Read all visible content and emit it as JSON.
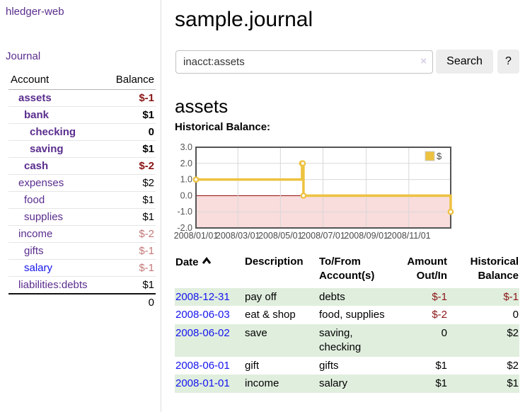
{
  "sidebar": {
    "brand": "hledger-web",
    "journal_link": "Journal",
    "accounts_table": {
      "account_header": "Account",
      "balance_header": "Balance",
      "rows": [
        {
          "name": "assets",
          "indent": 1,
          "bold": true,
          "link_color": "purple",
          "balance": "$-1",
          "neg": "strong"
        },
        {
          "name": "bank",
          "indent": 2,
          "bold": true,
          "link_color": "purple",
          "balance": "$1",
          "neg": "none"
        },
        {
          "name": "checking",
          "indent": 3,
          "bold": true,
          "link_color": "purple",
          "balance": "0",
          "neg": "none"
        },
        {
          "name": "saving",
          "indent": 3,
          "bold": true,
          "link_color": "purple",
          "balance": "$1",
          "neg": "none"
        },
        {
          "name": "cash",
          "indent": 2,
          "bold": true,
          "link_color": "purple",
          "balance": "$-2",
          "neg": "strong"
        },
        {
          "name": "expenses",
          "indent": 1,
          "bold": false,
          "link_color": "purple",
          "balance": "$2",
          "neg": "none"
        },
        {
          "name": "food",
          "indent": 2,
          "bold": false,
          "link_color": "purple",
          "balance": "$1",
          "neg": "none"
        },
        {
          "name": "supplies",
          "indent": 2,
          "bold": false,
          "link_color": "purple",
          "balance": "$1",
          "neg": "none"
        },
        {
          "name": "income",
          "indent": 1,
          "bold": false,
          "link_color": "purple",
          "balance": "$-2",
          "neg": "dim"
        },
        {
          "name": "gifts",
          "indent": 2,
          "bold": false,
          "link_color": "purple",
          "balance": "$-1",
          "neg": "dim"
        },
        {
          "name": "salary",
          "indent": 2,
          "bold": false,
          "link_color": "blue",
          "balance": "$-1",
          "neg": "dim"
        },
        {
          "name": "liabilities:debts",
          "indent": 1,
          "bold": false,
          "link_color": "purple",
          "balance": "$1",
          "neg": "none"
        }
      ],
      "total": "0"
    }
  },
  "header": {
    "title": "sample.journal"
  },
  "search": {
    "query": "inacct:assets",
    "clear_icon": "×",
    "search_label": "Search",
    "help_label": "?"
  },
  "account_page": {
    "heading": "assets",
    "chart_label": "Historical Balance:"
  },
  "chart_data": {
    "type": "line",
    "step": true,
    "title": "Historical Balance",
    "series": [
      {
        "name": "$",
        "color": "#edc240",
        "points": [
          [
            "2008-01-01",
            1
          ],
          [
            "2008-06-01",
            2
          ],
          [
            "2008-06-02",
            2
          ],
          [
            "2008-06-03",
            0
          ],
          [
            "2008-12-31",
            -1
          ]
        ]
      }
    ],
    "xlim": [
      "2008-01-01",
      "2008-12-31"
    ],
    "ylim": [
      -2,
      3
    ],
    "yticks": [
      3.0,
      2.0,
      1.0,
      0.0,
      -1.0,
      -2.0
    ],
    "xticks": [
      "2008/01/01",
      "2008/03/01",
      "2008/05/01",
      "2008/07/01",
      "2008/09/01",
      "2008/11/01"
    ],
    "legend": {
      "label": "$",
      "position": "top-right"
    },
    "grid": true,
    "negative_region_fill": "#f9dcdc",
    "zero_line_color": "#8f0000",
    "gridline_color": "#d8d8d8",
    "border_color": "#545454"
  },
  "register_table": {
    "headers": {
      "date": "Date",
      "description": "Description",
      "tofrom": "To/From Account(s)",
      "amount": "Amount Out/In",
      "balance": "Historical Balance"
    },
    "rows": [
      {
        "date": "2008-12-31",
        "description": "pay off",
        "accounts": "debts",
        "amount": "$-1",
        "amount_negative": true,
        "balance": "$-1",
        "balance_negative": true
      },
      {
        "date": "2008-06-03",
        "description": "eat & shop",
        "accounts": "food, supplies",
        "amount": "$-2",
        "amount_negative": true,
        "balance": "0",
        "balance_negative": false
      },
      {
        "date": "2008-06-02",
        "description": "save",
        "accounts": "saving,\nchecking",
        "amount": "0",
        "amount_negative": false,
        "balance": "$2",
        "balance_negative": false
      },
      {
        "date": "2008-06-01",
        "description": "gift",
        "accounts": "gifts",
        "amount": "$1",
        "amount_negative": false,
        "balance": "$2",
        "balance_negative": false
      },
      {
        "date": "2008-01-01",
        "description": "income",
        "accounts": "salary",
        "amount": "$1",
        "amount_negative": false,
        "balance": "$1",
        "balance_negative": false
      }
    ]
  },
  "colors": {
    "link_purple": "#5a2d8e",
    "link_blue": "#1414ee",
    "negative_strong": "#8b1414",
    "negative_dim": "#c47878",
    "row_green": "#e0eede",
    "series_yellow": "#edc240"
  }
}
